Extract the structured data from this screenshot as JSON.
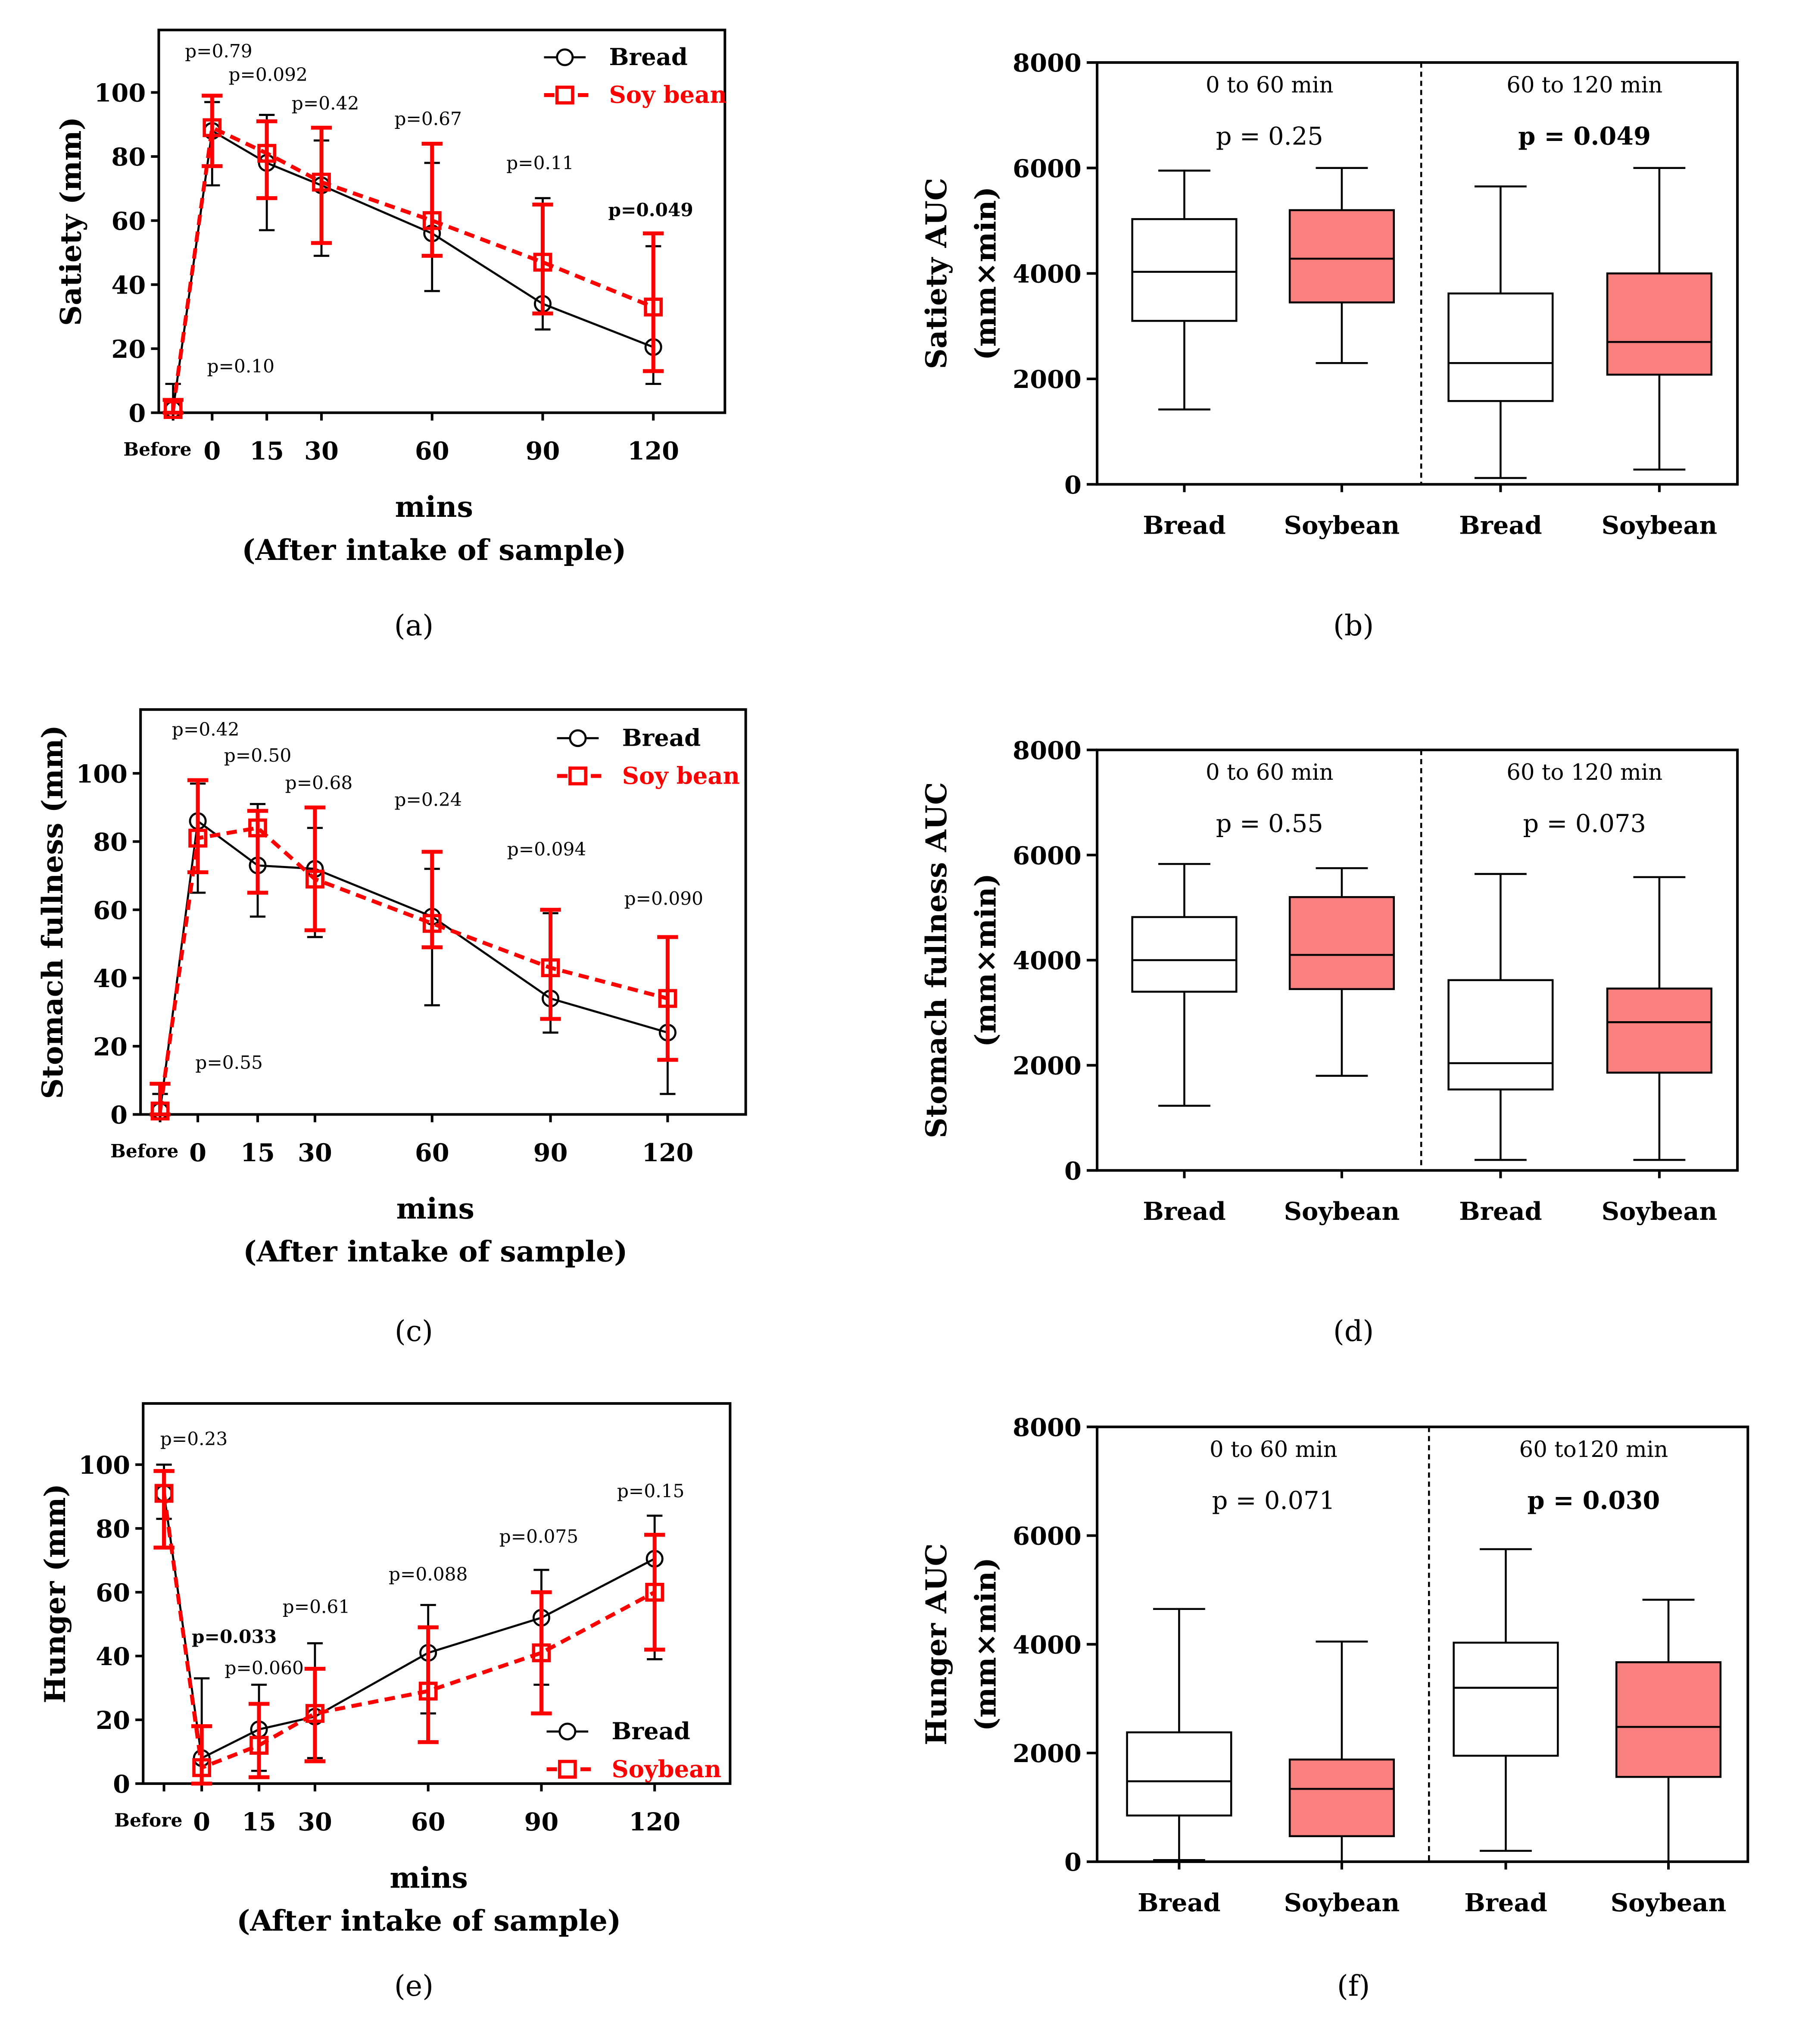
{
  "colors": {
    "bread": "#000000",
    "soybean": "#ff0000",
    "soy_box": "#fa8080"
  },
  "chart_data": [
    {
      "type": "line",
      "panel": "(a)",
      "ylabel": "Satiety (mm)",
      "xlabel": "mins",
      "xlabel2": "(After intake of sample)",
      "x": [
        "Before",
        "0",
        "15",
        "30",
        "60",
        "90",
        "120"
      ],
      "ylim": [
        0,
        100
      ],
      "yticks": [
        0,
        20,
        40,
        60,
        80,
        100
      ],
      "legend": {
        "position": "top-right",
        "entries": [
          "Bread",
          "Soy bean"
        ]
      },
      "series": [
        {
          "name": "Bread",
          "values": [
            1,
            88,
            78,
            71,
            56,
            34,
            20.5
          ],
          "err_low": [
            0,
            71,
            57,
            49,
            38,
            26,
            9
          ],
          "err_high": [
            9,
            97,
            93,
            85,
            78,
            67,
            52
          ]
        },
        {
          "name": "Soybean",
          "values": [
            1,
            89,
            81,
            72,
            60,
            47,
            33
          ],
          "err_low": [
            0,
            77,
            67,
            53,
            49,
            31,
            13
          ],
          "err_high": [
            4,
            99,
            91,
            89,
            84,
            65,
            56
          ]
        }
      ],
      "p_values": [
        {
          "label": "p=0.10",
          "bold": false
        },
        {
          "label": "p=0.79",
          "bold": false
        },
        {
          "label": "p=0.092",
          "bold": false
        },
        {
          "label": "p=0.42",
          "bold": false
        },
        {
          "label": "p=0.67",
          "bold": false
        },
        {
          "label": "p=0.11",
          "bold": false
        },
        {
          "label": "p=0.049",
          "bold": true
        }
      ]
    },
    {
      "type": "box",
      "panel": "(b)",
      "ylabel": "Satiety AUC",
      "ylabel2": "(mm×min)",
      "ylim": [
        0,
        8000
      ],
      "yticks": [
        0,
        2000,
        4000,
        6000,
        8000
      ],
      "groups": [
        {
          "label": "0 to 60 min",
          "p": "p = 0.25",
          "bold": false
        },
        {
          "label": "60 to 120 min",
          "p": "p = 0.049",
          "bold": true
        }
      ],
      "categories": [
        "Bread",
        "Soybean",
        "Bread",
        "Soybean"
      ],
      "boxes": [
        [
          1420,
          3100,
          4030,
          5030,
          5950
        ],
        [
          2300,
          3450,
          4280,
          5200,
          6000
        ],
        [
          120,
          1580,
          2300,
          3620,
          5650
        ],
        [
          280,
          2080,
          2700,
          4000,
          6000
        ]
      ]
    },
    {
      "type": "line",
      "panel": "(c)",
      "ylabel": "Stomach fullness (mm)",
      "xlabel": "mins",
      "xlabel2": "(After intake of sample)",
      "x": [
        "Before",
        "0",
        "15",
        "30",
        "60",
        "90",
        "120"
      ],
      "ylim": [
        0,
        100
      ],
      "yticks": [
        0,
        20,
        40,
        60,
        80,
        100
      ],
      "legend": {
        "position": "top-right",
        "entries": [
          "Bread",
          "Soy bean"
        ]
      },
      "series": [
        {
          "name": "Bread",
          "values": [
            1,
            86,
            73,
            72,
            58,
            34,
            24
          ],
          "err_low": [
            0,
            65,
            58,
            52,
            32,
            24,
            6
          ],
          "err_high": [
            6,
            97,
            91,
            84,
            72,
            59,
            52
          ]
        },
        {
          "name": "Soybean",
          "values": [
            1,
            81,
            84,
            69,
            56,
            43,
            34
          ],
          "err_low": [
            0,
            71,
            65,
            54,
            49,
            28,
            16
          ],
          "err_high": [
            9,
            98,
            89,
            90,
            77,
            60,
            52
          ]
        }
      ],
      "p_values": [
        {
          "label": "p=0.55",
          "bold": false
        },
        {
          "label": "p=0.42",
          "bold": false
        },
        {
          "label": "p=0.50",
          "bold": false
        },
        {
          "label": "p=0.68",
          "bold": false
        },
        {
          "label": "p=0.24",
          "bold": false
        },
        {
          "label": "p=0.094",
          "bold": false
        },
        {
          "label": "p=0.090",
          "bold": false
        }
      ]
    },
    {
      "type": "box",
      "panel": "(d)",
      "ylabel": "Stomach fullness AUC",
      "ylabel2": "(mm×min)",
      "ylim": [
        0,
        8000
      ],
      "yticks": [
        0,
        2000,
        4000,
        6000,
        8000
      ],
      "groups": [
        {
          "label": "0 to 60 min",
          "p": "p = 0.55",
          "bold": false
        },
        {
          "label": "60 to 120 min",
          "p": "p = 0.073",
          "bold": false
        }
      ],
      "categories": [
        "Bread",
        "Soybean",
        "Bread",
        "Soybean"
      ],
      "boxes": [
        [
          1230,
          3400,
          4000,
          4820,
          5830
        ],
        [
          1800,
          3450,
          4100,
          5200,
          5750
        ],
        [
          200,
          1540,
          2040,
          3620,
          5640
        ],
        [
          200,
          1860,
          2820,
          3460,
          5580
        ]
      ]
    },
    {
      "type": "line",
      "panel": "(e)",
      "ylabel": "Hunger (mm)",
      "xlabel": "mins",
      "xlabel2": "(After intake of sample)",
      "x": [
        "Before",
        "0",
        "15",
        "30",
        "60",
        "90",
        "120"
      ],
      "ylim": [
        0,
        100
      ],
      "yticks": [
        0,
        20,
        40,
        60,
        80,
        100
      ],
      "legend": {
        "position": "bottom-right",
        "entries": [
          "Bread",
          "Soybean"
        ]
      },
      "series": [
        {
          "name": "Bread",
          "values": [
            91,
            8,
            17,
            21,
            41,
            52,
            70.5
          ],
          "err_low": [
            83,
            0,
            4,
            8,
            22,
            31,
            39
          ],
          "err_high": [
            100,
            33,
            31,
            44,
            56,
            67,
            84
          ]
        },
        {
          "name": "Soybean",
          "values": [
            91,
            5,
            12,
            22,
            29,
            41,
            60
          ],
          "err_low": [
            74,
            0,
            2,
            7,
            13,
            22,
            42
          ],
          "err_high": [
            98,
            18,
            25,
            36,
            49,
            60,
            78
          ]
        }
      ],
      "p_values": [
        {
          "label": "p=0.23",
          "bold": false
        },
        {
          "label": "p=0.033",
          "bold": true
        },
        {
          "label": "p=0.060",
          "bold": false
        },
        {
          "label": "p=0.61",
          "bold": false
        },
        {
          "label": "p=0.088",
          "bold": false
        },
        {
          "label": "p=0.075",
          "bold": false
        },
        {
          "label": "p=0.15",
          "bold": false
        }
      ]
    },
    {
      "type": "box",
      "panel": "(f)",
      "ylabel": "Hunger AUC",
      "ylabel2": "(mm×min)",
      "ylim": [
        0,
        8000
      ],
      "yticks": [
        0,
        2000,
        4000,
        6000,
        8000
      ],
      "groups": [
        {
          "label": "0 to 60 min",
          "p": "p = 0.071",
          "bold": false
        },
        {
          "label": "60 to120 min",
          "p": "p = 0.030",
          "bold": true
        }
      ],
      "categories": [
        "Bread",
        "Soybean",
        "Bread",
        "Soybean"
      ],
      "boxes": [
        [
          30,
          850,
          1480,
          2380,
          4650
        ],
        [
          0,
          470,
          1340,
          1880,
          4050
        ],
        [
          200,
          1950,
          3200,
          4030,
          5750
        ],
        [
          0,
          1560,
          2480,
          3670,
          4820
        ]
      ]
    }
  ]
}
